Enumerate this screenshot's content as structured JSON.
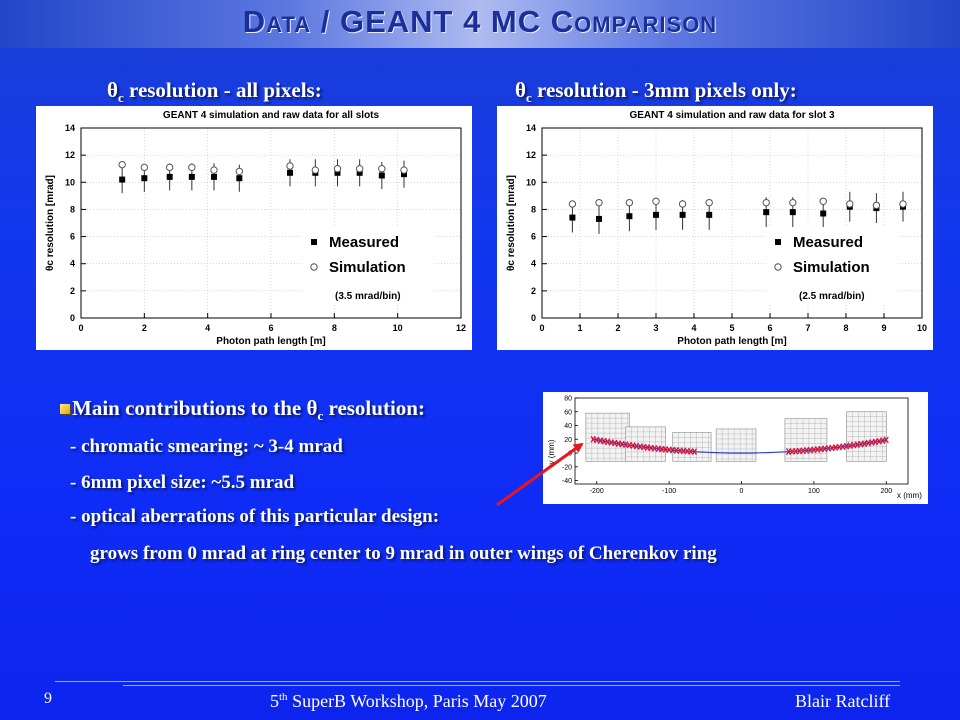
{
  "slide": {
    "title": "Data / GEANT 4 MC Comparison",
    "page_number": "9",
    "footer_prefix": "5",
    "footer_sup": "th",
    "footer_suffix": " SuperB Workshop, Paris  May 2007",
    "footer_author": "Blair Ratcliff"
  },
  "headings": {
    "left_theta": "θ",
    "left_sub": "c",
    "left_rest": " resolution - all pixels:",
    "right_theta": "θ",
    "right_sub": "c",
    "right_rest": " resolution - 3mm pixels only:"
  },
  "bullets": {
    "main_prefix": "Main contributions to the θ",
    "main_sub": "c",
    "main_suffix": " resolution:",
    "item1": "-  chromatic smearing: ~ 3-4 mrad",
    "item2": "-  6mm pixel size: ~5.5 mrad",
    "item3": "-  optical aberrations of this particular design:",
    "item4": "grows from 0 mrad at ring center to 9 mrad in outer wings of Cherenkov ring"
  },
  "colors": {
    "background": "#1236ef",
    "title_text": "#1b2f9a",
    "bullet": "#f0c020",
    "arrow": "#e8141e",
    "ray_red": "#d4143a",
    "ray_blue": "#3040d0"
  },
  "chart_data": [
    {
      "type": "scatter",
      "title": "GEANT 4 simulation and raw data for all slots",
      "xlabel": "Photon path length [m]",
      "ylabel": "θc resolution [mrad]",
      "xlim": [
        0,
        12
      ],
      "ylim": [
        0,
        14
      ],
      "xticks": [
        "0",
        "2",
        "4",
        "6",
        "8",
        "10",
        "12"
      ],
      "yticks": [
        "0",
        "2",
        "4",
        "6",
        "8",
        "10",
        "12",
        "14"
      ],
      "legend_position": "bottom-right",
      "annotation": "(3.5 mrad/bin)",
      "series": [
        {
          "name": "Measured",
          "marker": "filled-square",
          "x": [
            1.3,
            2.0,
            2.8,
            3.5,
            4.2,
            5.0,
            6.6,
            7.4,
            8.1,
            8.8,
            9.5,
            10.2
          ],
          "y": [
            10.2,
            10.3,
            10.4,
            10.4,
            10.4,
            10.3,
            10.7,
            10.7,
            10.7,
            10.7,
            10.5,
            10.6
          ],
          "err": [
            1.0,
            1.0,
            1.0,
            1.0,
            1.0,
            1.0,
            1.0,
            1.0,
            1.0,
            1.0,
            1.0,
            1.0
          ]
        },
        {
          "name": "Simulation",
          "marker": "open-circle",
          "x": [
            1.3,
            2.0,
            2.8,
            3.5,
            4.2,
            5.0,
            6.6,
            7.4,
            8.1,
            8.8,
            9.5,
            10.2
          ],
          "y": [
            11.3,
            11.1,
            11.1,
            11.1,
            10.9,
            10.8,
            11.2,
            10.9,
            11.0,
            11.0,
            11.0,
            10.9
          ]
        }
      ]
    },
    {
      "type": "scatter",
      "title": "GEANT 4 simulation and raw data for slot 3",
      "xlabel": "Photon path length [m]",
      "ylabel": "θc resolution [mrad]",
      "xlim": [
        0,
        10
      ],
      "ylim": [
        0,
        14
      ],
      "xticks": [
        "0",
        "1",
        "2",
        "3",
        "4",
        "5",
        "6",
        "7",
        "8",
        "9",
        "10"
      ],
      "yticks": [
        "0",
        "2",
        "4",
        "6",
        "8",
        "10",
        "12",
        "14"
      ],
      "legend_position": "bottom-right",
      "annotation": "(2.5 mrad/bin)",
      "series": [
        {
          "name": "Measured",
          "marker": "filled-square",
          "x": [
            0.8,
            1.5,
            2.3,
            3.0,
            3.7,
            4.4,
            5.9,
            6.6,
            7.4,
            8.1,
            8.8,
            9.5
          ],
          "y": [
            7.4,
            7.3,
            7.5,
            7.6,
            7.6,
            7.6,
            7.8,
            7.8,
            7.7,
            8.2,
            8.1,
            8.2
          ],
          "err": [
            1.1,
            1.1,
            1.1,
            1.1,
            1.1,
            1.1,
            1.1,
            1.1,
            1.1,
            1.1,
            1.1,
            1.1
          ]
        },
        {
          "name": "Simulation",
          "marker": "open-circle",
          "x": [
            0.8,
            1.5,
            2.3,
            3.0,
            3.7,
            4.4,
            5.9,
            6.6,
            7.4,
            8.1,
            8.8,
            9.5
          ],
          "y": [
            8.4,
            8.5,
            8.5,
            8.6,
            8.4,
            8.5,
            8.5,
            8.5,
            8.6,
            8.4,
            8.3,
            8.4
          ]
        }
      ]
    }
  ],
  "ray_plot": {
    "xlabel": "x (mm)",
    "ylabel": "y (mm)",
    "xticks": [
      "-200",
      "-100",
      "0",
      "100",
      "200"
    ],
    "yticks": [
      "80",
      "60",
      "40",
      "20",
      "0",
      "-20",
      "-40"
    ]
  }
}
